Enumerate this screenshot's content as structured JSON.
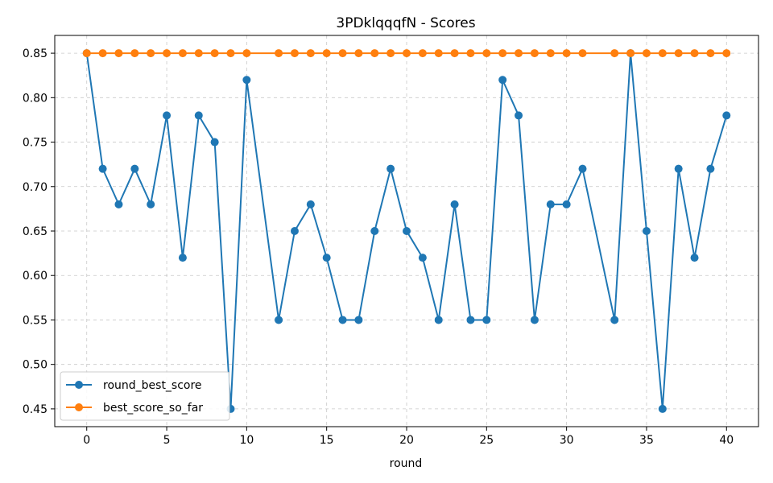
{
  "chart_data": {
    "type": "line",
    "title": "3PDklqqqfN - Scores",
    "xlabel": "round",
    "ylabel": "",
    "xlim": [
      -2,
      42
    ],
    "ylim": [
      0.43,
      0.87
    ],
    "x_ticks": [
      0,
      5,
      10,
      15,
      20,
      25,
      30,
      35,
      40
    ],
    "y_ticks": [
      0.45,
      0.5,
      0.55,
      0.6,
      0.65,
      0.7,
      0.75,
      0.8,
      0.85
    ],
    "grid": true,
    "legend_position": "bottom-left",
    "series": [
      {
        "name": "round_best_score",
        "color": "#1f77b4",
        "x": [
          0,
          1,
          2,
          3,
          4,
          5,
          6,
          7,
          8,
          9,
          10,
          12,
          13,
          14,
          15,
          16,
          17,
          18,
          19,
          20,
          21,
          22,
          23,
          24,
          25,
          26,
          27,
          28,
          29,
          30,
          31,
          33,
          34,
          35,
          36,
          37,
          38,
          39,
          40
        ],
        "values": [
          0.85,
          0.72,
          0.68,
          0.72,
          0.68,
          0.78,
          0.62,
          0.78,
          0.75,
          0.45,
          0.82,
          0.55,
          0.65,
          0.68,
          0.62,
          0.55,
          0.55,
          0.65,
          0.72,
          0.65,
          0.62,
          0.55,
          0.68,
          0.55,
          0.55,
          0.82,
          0.78,
          0.55,
          0.68,
          0.68,
          0.72,
          0.55,
          0.85,
          0.65,
          0.45,
          0.72,
          0.62,
          0.72,
          0.78
        ]
      },
      {
        "name": "best_score_so_far",
        "color": "#ff7f0e",
        "x": [
          0,
          1,
          2,
          3,
          4,
          5,
          6,
          7,
          8,
          9,
          10,
          12,
          13,
          14,
          15,
          16,
          17,
          18,
          19,
          20,
          21,
          22,
          23,
          24,
          25,
          26,
          27,
          28,
          29,
          30,
          31,
          33,
          34,
          35,
          36,
          37,
          38,
          39,
          40
        ],
        "values": [
          0.85,
          0.85,
          0.85,
          0.85,
          0.85,
          0.85,
          0.85,
          0.85,
          0.85,
          0.85,
          0.85,
          0.85,
          0.85,
          0.85,
          0.85,
          0.85,
          0.85,
          0.85,
          0.85,
          0.85,
          0.85,
          0.85,
          0.85,
          0.85,
          0.85,
          0.85,
          0.85,
          0.85,
          0.85,
          0.85,
          0.85,
          0.85,
          0.85,
          0.85,
          0.85,
          0.85,
          0.85,
          0.85,
          0.85
        ]
      }
    ]
  }
}
